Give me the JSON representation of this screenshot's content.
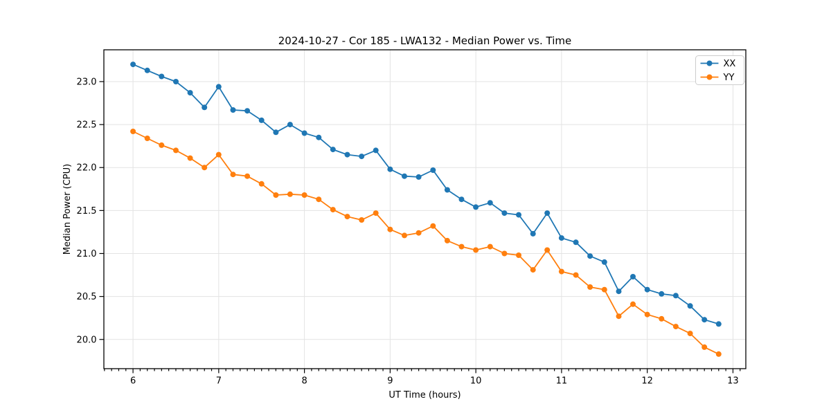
{
  "chart_data": {
    "type": "line",
    "title": "2024-10-27 - Cor 185 - LWA132 - Median Power vs. Time",
    "xlabel": "UT Time (hours)",
    "ylabel": "Median Power (CPU)",
    "xlim": [
      5.66,
      13.15
    ],
    "ylim": [
      19.66,
      23.37
    ],
    "grid": true,
    "legend_position": "upper right",
    "xticks": {
      "values": [
        6,
        7,
        8,
        9,
        10,
        11,
        12,
        13
      ],
      "labels": [
        "6",
        "7",
        "8",
        "9",
        "10",
        "11",
        "12",
        "13"
      ]
    },
    "x_minor_tick_step": 0.083333,
    "yticks": {
      "values": [
        20.0,
        20.5,
        21.0,
        21.5,
        22.0,
        22.5,
        23.0
      ],
      "labels": [
        "20.0",
        "20.5",
        "21.0",
        "21.5",
        "22.0",
        "22.5",
        "23.0"
      ]
    },
    "x": [
      6.0,
      6.167,
      6.333,
      6.5,
      6.667,
      6.833,
      7.0,
      7.167,
      7.333,
      7.5,
      7.667,
      7.833,
      8.0,
      8.167,
      8.333,
      8.5,
      8.667,
      8.833,
      9.0,
      9.167,
      9.333,
      9.5,
      9.667,
      9.833,
      10.0,
      10.167,
      10.333,
      10.5,
      10.667,
      10.833,
      11.0,
      11.167,
      11.333,
      11.5,
      11.667,
      11.833,
      12.0,
      12.167,
      12.333,
      12.5,
      12.667,
      12.833
    ],
    "series": [
      {
        "name": "XX",
        "color": "#1f77b4",
        "values": [
          23.2,
          23.13,
          23.06,
          23.0,
          22.87,
          22.7,
          22.94,
          22.67,
          22.66,
          22.55,
          22.41,
          22.5,
          22.4,
          22.35,
          22.21,
          22.15,
          22.13,
          22.2,
          21.98,
          21.9,
          21.89,
          21.97,
          21.74,
          21.63,
          21.54,
          21.59,
          21.47,
          21.45,
          21.23,
          21.47,
          21.18,
          21.13,
          20.97,
          20.9,
          20.56,
          20.73,
          20.58,
          20.53,
          20.51,
          20.39,
          20.23,
          20.18
        ]
      },
      {
        "name": "YY",
        "color": "#ff7f0e",
        "values": [
          22.42,
          22.34,
          22.26,
          22.2,
          22.11,
          22.0,
          22.15,
          21.92,
          21.9,
          21.81,
          21.68,
          21.69,
          21.68,
          21.63,
          21.51,
          21.43,
          21.39,
          21.47,
          21.28,
          21.21,
          21.24,
          21.32,
          21.15,
          21.08,
          21.04,
          21.08,
          21.0,
          20.98,
          20.81,
          21.04,
          20.79,
          20.75,
          20.61,
          20.58,
          20.27,
          20.41,
          20.29,
          20.24,
          20.15,
          20.07,
          19.91,
          19.83
        ]
      }
    ]
  }
}
